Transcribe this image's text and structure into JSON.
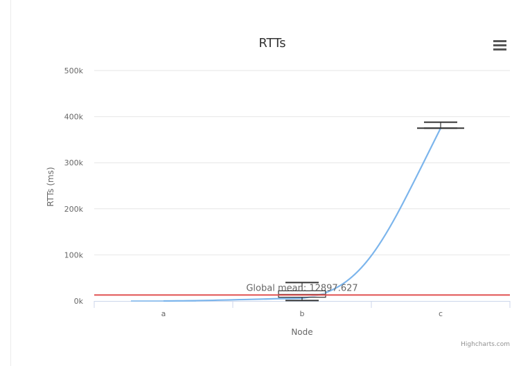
{
  "chart_data": {
    "type": "boxplot",
    "title": "RTTs",
    "xlabel": "Node",
    "ylabel": "RTTs (ms)",
    "categories": [
      "a",
      "b",
      "c"
    ],
    "ylim": [
      0,
      500000
    ],
    "yticks": [
      0,
      100000,
      200000,
      300000,
      400000,
      500000
    ],
    "ytick_labels": [
      "0k",
      "100k",
      "200k",
      "300k",
      "400k",
      "500k"
    ],
    "boxes": [
      {
        "category": "a",
        "low": 0,
        "q1": 0,
        "median": 0,
        "q3": 0,
        "high": 0
      },
      {
        "category": "b",
        "low": 1000,
        "q1": 8000,
        "median": 14000,
        "q3": 22000,
        "high": 40000
      },
      {
        "category": "c",
        "low": 375000,
        "q1": 375000,
        "median": 375000,
        "q3": 375000,
        "high": 388000
      }
    ],
    "trend_line": {
      "x": [
        "a",
        "b",
        "c"
      ],
      "y": [
        0,
        6000,
        375000
      ],
      "color": "#7cb5ec"
    },
    "plot_line": {
      "value": 12897.627,
      "label": "Global mean: 12897.627",
      "color": "#e05050"
    },
    "grid": true,
    "legend": "none",
    "menu_icon": "hamburger-menu-icon",
    "credits": "Highcharts.com"
  }
}
